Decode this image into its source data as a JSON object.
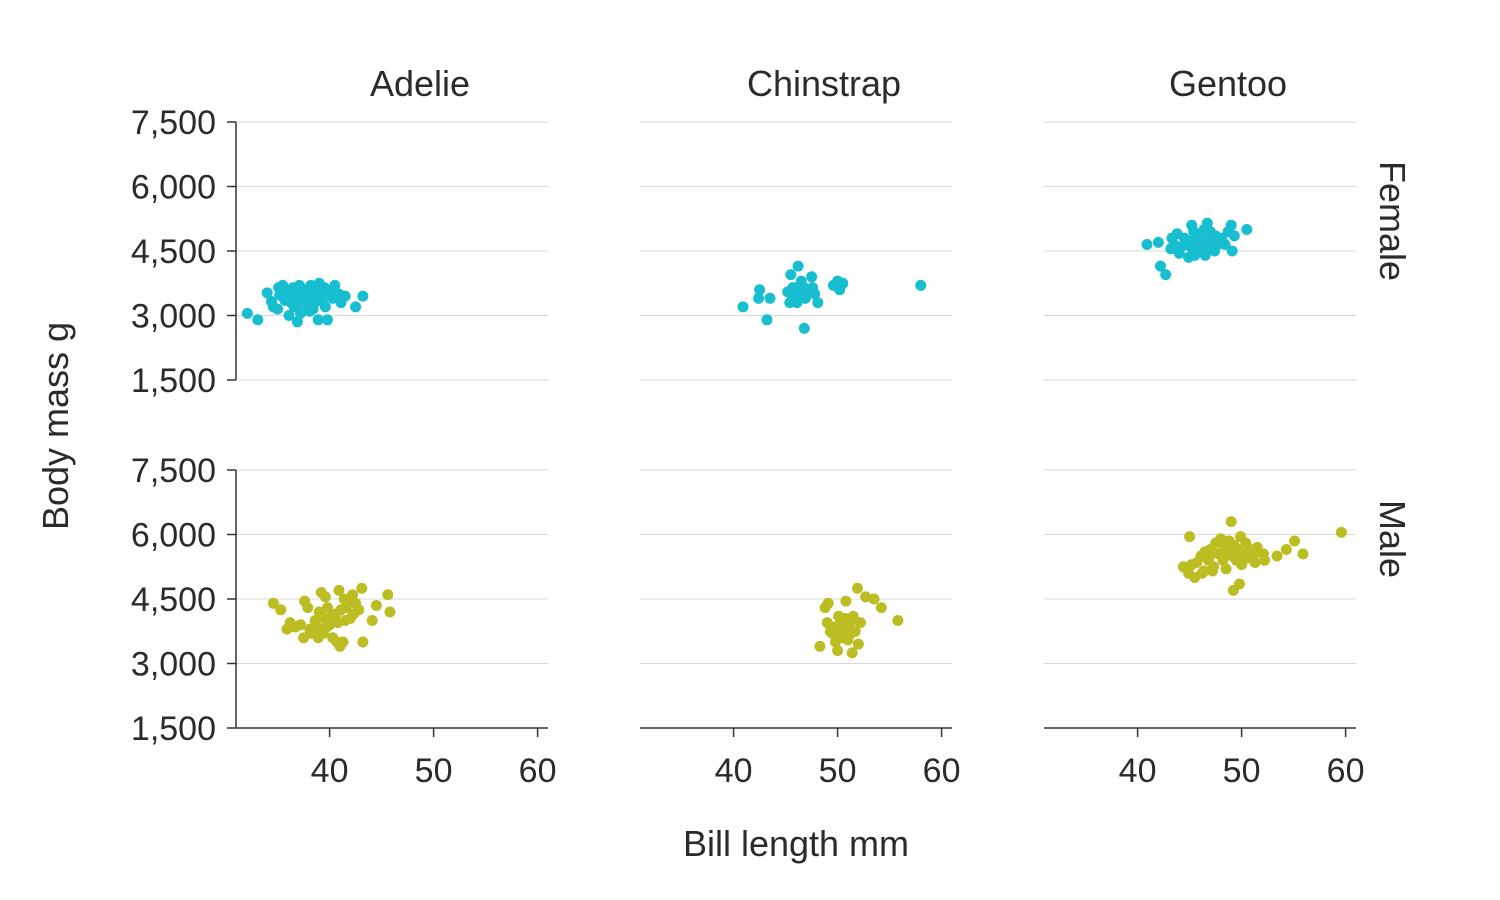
{
  "chart_data": {
    "type": "scatter",
    "xlabel": "Bill length mm",
    "ylabel": "Body mass g",
    "xlim": [
      31,
      61
    ],
    "ylim": [
      1500,
      7500
    ],
    "x_ticks": [
      40,
      50,
      60
    ],
    "y_ticks": [
      1500,
      3000,
      4500,
      6000,
      7500
    ],
    "y_tick_labels": [
      "1,500",
      "3,000",
      "4,500",
      "6,000",
      "7,500"
    ],
    "grid": "horizontal",
    "columns": [
      "Adelie",
      "Chinstrap",
      "Gentoo"
    ],
    "rows": [
      "Female",
      "Male"
    ],
    "colors": {
      "Female": "#17becf",
      "Male": "#bcbd22"
    },
    "panels": [
      {
        "column": "Adelie",
        "row": "Female",
        "points": [
          [
            32.1,
            3050
          ],
          [
            33.1,
            2900
          ],
          [
            34.0,
            3525
          ],
          [
            34.4,
            3325
          ],
          [
            34.6,
            3200
          ],
          [
            35.0,
            3150
          ],
          [
            35.2,
            3475
          ],
          [
            35.5,
            3700
          ],
          [
            35.7,
            3350
          ],
          [
            35.9,
            3600
          ],
          [
            36.0,
            3450
          ],
          [
            36.2,
            3550
          ],
          [
            36.3,
            3300
          ],
          [
            36.4,
            3400
          ],
          [
            36.5,
            3650
          ],
          [
            36.6,
            3200
          ],
          [
            36.7,
            3600
          ],
          [
            36.8,
            3250
          ],
          [
            36.9,
            2850
          ],
          [
            37.0,
            3500
          ],
          [
            37.1,
            3700
          ],
          [
            37.3,
            3350
          ],
          [
            37.5,
            3450
          ],
          [
            37.6,
            3600
          ],
          [
            37.7,
            3300
          ],
          [
            37.8,
            3150
          ],
          [
            37.9,
            3250
          ],
          [
            38.0,
            3550
          ],
          [
            38.1,
            3100
          ],
          [
            38.2,
            3700
          ],
          [
            38.3,
            3400
          ],
          [
            38.5,
            3500
          ],
          [
            38.6,
            3300
          ],
          [
            38.7,
            3600
          ],
          [
            38.8,
            3450
          ],
          [
            38.9,
            2900
          ],
          [
            39.0,
            3750
          ],
          [
            39.2,
            3350
          ],
          [
            39.3,
            3550
          ],
          [
            39.5,
            3650
          ],
          [
            39.6,
            3200
          ],
          [
            39.7,
            3450
          ],
          [
            39.8,
            2900
          ],
          [
            40.2,
            3600
          ],
          [
            40.3,
            3400
          ],
          [
            40.5,
            3700
          ],
          [
            40.9,
            3500
          ],
          [
            41.1,
            3300
          ],
          [
            41.5,
            3450
          ],
          [
            42.5,
            3200
          ],
          [
            43.2,
            3450
          ],
          [
            35.1,
            3650
          ],
          [
            36.1,
            3000
          ],
          [
            37.2,
            3050
          ],
          [
            38.4,
            3150
          ]
        ]
      },
      {
        "column": "Adelie",
        "row": "Male",
        "points": [
          [
            34.6,
            4400
          ],
          [
            35.3,
            4250
          ],
          [
            35.9,
            3800
          ],
          [
            36.2,
            3950
          ],
          [
            36.7,
            3850
          ],
          [
            37.2,
            3900
          ],
          [
            37.5,
            3600
          ],
          [
            37.6,
            4450
          ],
          [
            37.9,
            4300
          ],
          [
            38.1,
            3800
          ],
          [
            38.3,
            3700
          ],
          [
            38.6,
            4000
          ],
          [
            38.8,
            3850
          ],
          [
            39.0,
            4200
          ],
          [
            39.2,
            4650
          ],
          [
            39.4,
            3700
          ],
          [
            39.5,
            4050
          ],
          [
            39.6,
            4550
          ],
          [
            39.7,
            3850
          ],
          [
            39.8,
            4300
          ],
          [
            40.0,
            3900
          ],
          [
            40.2,
            4100
          ],
          [
            40.3,
            3600
          ],
          [
            40.5,
            4000
          ],
          [
            40.6,
            4150
          ],
          [
            40.8,
            3950
          ],
          [
            40.9,
            4700
          ],
          [
            41.0,
            3400
          ],
          [
            41.1,
            4250
          ],
          [
            41.3,
            3500
          ],
          [
            41.5,
            4000
          ],
          [
            41.6,
            4300
          ],
          [
            41.8,
            4450
          ],
          [
            42.0,
            4050
          ],
          [
            42.2,
            4600
          ],
          [
            42.3,
            4150
          ],
          [
            42.5,
            4400
          ],
          [
            42.8,
            4250
          ],
          [
            43.1,
            4750
          ],
          [
            43.2,
            3500
          ],
          [
            44.1,
            4000
          ],
          [
            44.5,
            4350
          ],
          [
            45.6,
            4600
          ],
          [
            45.8,
            4200
          ],
          [
            38.9,
            3600
          ],
          [
            40.7,
            3500
          ],
          [
            41.4,
            4500
          ]
        ]
      },
      {
        "column": "Chinstrap",
        "row": "Female",
        "points": [
          [
            40.9,
            3200
          ],
          [
            42.4,
            3400
          ],
          [
            42.5,
            3600
          ],
          [
            43.2,
            2900
          ],
          [
            43.5,
            3400
          ],
          [
            45.2,
            3550
          ],
          [
            45.4,
            3300
          ],
          [
            45.5,
            3950
          ],
          [
            45.6,
            3500
          ],
          [
            45.7,
            3650
          ],
          [
            45.9,
            3400
          ],
          [
            46.0,
            3500
          ],
          [
            46.1,
            3300
          ],
          [
            46.2,
            4150
          ],
          [
            46.4,
            3700
          ],
          [
            46.5,
            3800
          ],
          [
            46.6,
            3450
          ],
          [
            46.7,
            3550
          ],
          [
            46.8,
            3650
          ],
          [
            46.9,
            3400
          ],
          [
            47.0,
            3500
          ],
          [
            47.2,
            3600
          ],
          [
            47.5,
            3900
          ],
          [
            47.6,
            3650
          ],
          [
            47.8,
            3500
          ],
          [
            48.1,
            3300
          ],
          [
            49.6,
            3700
          ],
          [
            50.0,
            3800
          ],
          [
            50.2,
            3600
          ],
          [
            50.5,
            3750
          ],
          [
            58.0,
            3700
          ],
          [
            46.8,
            2700
          ]
        ]
      },
      {
        "column": "Chinstrap",
        "row": "Male",
        "points": [
          [
            48.3,
            3400
          ],
          [
            48.8,
            4300
          ],
          [
            49.0,
            3950
          ],
          [
            49.1,
            4400
          ],
          [
            49.3,
            3750
          ],
          [
            49.5,
            3700
          ],
          [
            49.7,
            3850
          ],
          [
            49.8,
            3500
          ],
          [
            50.0,
            3300
          ],
          [
            50.1,
            4100
          ],
          [
            50.2,
            3650
          ],
          [
            50.3,
            4000
          ],
          [
            50.4,
            3700
          ],
          [
            50.5,
            3900
          ],
          [
            50.6,
            3600
          ],
          [
            50.7,
            4050
          ],
          [
            50.8,
            4450
          ],
          [
            50.9,
            3800
          ],
          [
            51.0,
            3550
          ],
          [
            51.2,
            3950
          ],
          [
            51.3,
            3700
          ],
          [
            51.4,
            3250
          ],
          [
            51.5,
            4100
          ],
          [
            51.7,
            3750
          ],
          [
            51.9,
            4750
          ],
          [
            52.0,
            3450
          ],
          [
            52.2,
            3950
          ],
          [
            52.7,
            4550
          ],
          [
            53.5,
            4500
          ],
          [
            54.2,
            4300
          ],
          [
            55.8,
            4000
          ]
        ]
      },
      {
        "column": "Gentoo",
        "row": "Female",
        "points": [
          [
            40.9,
            4650
          ],
          [
            42.0,
            4700
          ],
          [
            42.2,
            4150
          ],
          [
            42.7,
            3950
          ],
          [
            43.2,
            4550
          ],
          [
            43.3,
            4800
          ],
          [
            43.5,
            4650
          ],
          [
            43.8,
            4900
          ],
          [
            44.0,
            4450
          ],
          [
            44.5,
            4800
          ],
          [
            44.9,
            4350
          ],
          [
            45.1,
            4600
          ],
          [
            45.2,
            5100
          ],
          [
            45.3,
            4750
          ],
          [
            45.4,
            4950
          ],
          [
            45.5,
            4400
          ],
          [
            45.6,
            4850
          ],
          [
            45.8,
            4550
          ],
          [
            46.0,
            4650
          ],
          [
            46.1,
            4500
          ],
          [
            46.2,
            4750
          ],
          [
            46.4,
            5000
          ],
          [
            46.5,
            4400
          ],
          [
            46.6,
            4800
          ],
          [
            46.7,
            5150
          ],
          [
            46.8,
            4600
          ],
          [
            47.0,
            4950
          ],
          [
            47.2,
            4750
          ],
          [
            47.4,
            4500
          ],
          [
            47.5,
            4850
          ],
          [
            47.7,
            4650
          ],
          [
            48.1,
            4800
          ],
          [
            48.4,
            4650
          ],
          [
            48.7,
            4950
          ],
          [
            49.0,
            5100
          ],
          [
            49.1,
            4500
          ],
          [
            49.3,
            4850
          ],
          [
            50.5,
            5000
          ],
          [
            45.0,
            4700
          ],
          [
            44.2,
            4600
          ]
        ]
      },
      {
        "column": "Gentoo",
        "row": "Male",
        "points": [
          [
            44.4,
            5250
          ],
          [
            44.9,
            5100
          ],
          [
            45.0,
            5950
          ],
          [
            45.2,
            5300
          ],
          [
            45.5,
            5000
          ],
          [
            45.7,
            5350
          ],
          [
            46.1,
            5500
          ],
          [
            46.2,
            5100
          ],
          [
            46.4,
            5150
          ],
          [
            46.5,
            5600
          ],
          [
            46.8,
            5400
          ],
          [
            47.0,
            5650
          ],
          [
            47.3,
            5250
          ],
          [
            47.5,
            5800
          ],
          [
            47.8,
            5550
          ],
          [
            48.0,
            5900
          ],
          [
            48.2,
            5400
          ],
          [
            48.4,
            5700
          ],
          [
            48.5,
            5200
          ],
          [
            48.6,
            5600
          ],
          [
            48.8,
            5850
          ],
          [
            49.0,
            6300
          ],
          [
            49.1,
            5500
          ],
          [
            49.3,
            5750
          ],
          [
            49.5,
            5400
          ],
          [
            49.6,
            5650
          ],
          [
            49.8,
            4850
          ],
          [
            49.9,
            5950
          ],
          [
            50.0,
            5300
          ],
          [
            50.2,
            5550
          ],
          [
            50.4,
            5800
          ],
          [
            50.5,
            5450
          ],
          [
            50.8,
            5650
          ],
          [
            51.1,
            5500
          ],
          [
            51.3,
            5350
          ],
          [
            51.5,
            5700
          ],
          [
            52.1,
            5550
          ],
          [
            52.2,
            5400
          ],
          [
            53.4,
            5500
          ],
          [
            54.3,
            5650
          ],
          [
            55.1,
            5850
          ],
          [
            55.9,
            5550
          ],
          [
            59.6,
            6050
          ],
          [
            49.2,
            4700
          ],
          [
            47.2,
            5150
          ],
          [
            46.9,
            5500
          ]
        ]
      }
    ]
  }
}
